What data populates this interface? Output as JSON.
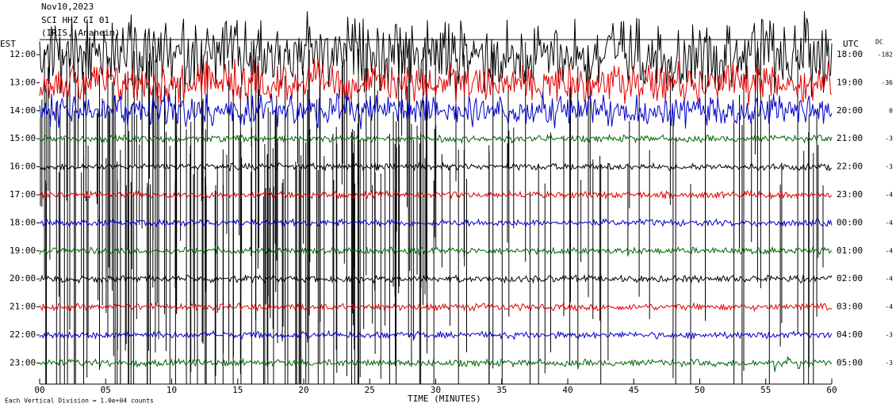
{
  "header": {
    "lines": [
      "Nov10,2023",
      "SCI HHZ CI 01",
      "(IRIS, Anaheim)"
    ]
  },
  "left_label": "EST",
  "right_label": "UTC",
  "dc_label": "DC",
  "rows": [
    {
      "est": "12:00",
      "utc": "18:00",
      "dc": "-182"
    },
    {
      "est": "13:00",
      "utc": "19:00",
      "dc": "-36"
    },
    {
      "est": "14:00",
      "utc": "20:00",
      "dc": "0"
    },
    {
      "est": "15:00",
      "utc": "21:00",
      "dc": "-3"
    },
    {
      "est": "16:00",
      "utc": "22:00",
      "dc": "-3"
    },
    {
      "est": "17:00",
      "utc": "23:00",
      "dc": "-4"
    },
    {
      "est": "18:00",
      "utc": "00:00",
      "dc": "-4"
    },
    {
      "est": "19:00",
      "utc": "01:00",
      "dc": "-4"
    },
    {
      "est": "20:00",
      "utc": "02:00",
      "dc": "-4"
    },
    {
      "est": "21:00",
      "utc": "03:00",
      "dc": "-4"
    },
    {
      "est": "22:00",
      "utc": "04:00",
      "dc": "-3"
    },
    {
      "est": "23:00",
      "utc": "05:00",
      "dc": "-3"
    }
  ],
  "x_axis": {
    "title": "TIME (MINUTES)",
    "ticks": [
      "00",
      "05",
      "10",
      "15",
      "20",
      "25",
      "30",
      "35",
      "40",
      "45",
      "50",
      "55",
      "60"
    ]
  },
  "footer": "Each Vertical Division = 1.0e+04 counts"
}
